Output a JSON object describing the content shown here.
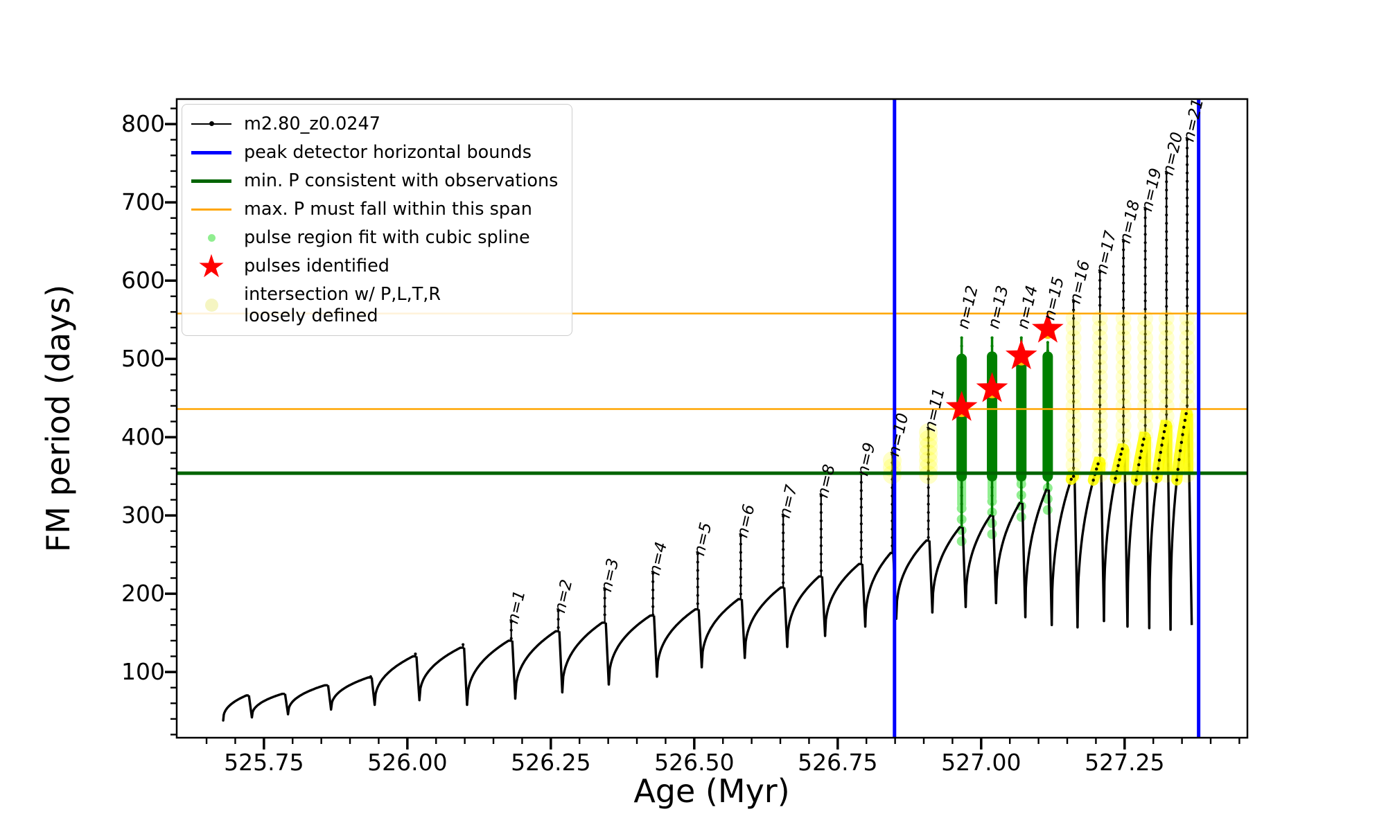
{
  "colors": {
    "curve": "#000000",
    "bounds": "#0000ff",
    "min_p_line": "#006400",
    "max_p_span": "#ffa500",
    "spline_fit": "#90ee90",
    "spline_column": "#008000",
    "pulse_star": "#ff0000",
    "star_center": "#ffbf00",
    "intersection": "#ffff00",
    "intersection_pale": "#f5f5c2"
  },
  "legend": {
    "items": [
      {
        "marker": "line-dot",
        "color": "#000000",
        "label": "m2.80_z0.0247"
      },
      {
        "marker": "thick-line",
        "color": "#0000ff",
        "label": "peak detector horizontal bounds"
      },
      {
        "marker": "thick-line",
        "color": "#006400",
        "label": "min. P consistent with observations"
      },
      {
        "marker": "line",
        "color": "#ffa500",
        "label": "max. P must fall within this span"
      },
      {
        "marker": "dot",
        "color": "#90ee90",
        "size": 11,
        "label": "pulse region fit with cubic spline"
      },
      {
        "marker": "star",
        "color": "#ff0000",
        "label": "pulses identified"
      },
      {
        "marker": "dot",
        "color": "#f5f5c2",
        "size": 19,
        "label": "intersection w/ P,L,T,R\nloosely defined"
      }
    ]
  },
  "chart_data": {
    "type": "line",
    "title": "",
    "xlabel": "Age (Myr)",
    "ylabel": "FM period (days)",
    "series_label": "m2.80_z0.0247",
    "xlim": [
      525.598,
      527.464
    ],
    "ylim": [
      16,
      832
    ],
    "x_major": [
      525.75,
      526.0,
      526.25,
      526.5,
      526.75,
      527.0,
      527.25
    ],
    "x_tick_labels": [
      "525.75",
      "526.00",
      "526.25",
      "526.50",
      "526.75",
      "527.00",
      "527.25"
    ],
    "x_minor_step": 0.05,
    "y_major": [
      100,
      200,
      300,
      400,
      500,
      600,
      700,
      800
    ],
    "y_tick_labels": [
      "100",
      "200",
      "300",
      "400",
      "500",
      "600",
      "700",
      "800"
    ],
    "y_minor_step": 20,
    "grid": false,
    "legend_position": "upper left",
    "bounds_x": [
      526.849,
      527.379
    ],
    "min_P": 354,
    "max_P_span": [
      436,
      558
    ],
    "teeth_start_age": 525.679,
    "teeth_start_P": 38,
    "end_P": 160,
    "teeth": [
      {
        "n": "",
        "a": 525.722,
        "p0": 38,
        "sh": 70,
        "sp": 70
      },
      {
        "n": "",
        "a": 525.785,
        "p0": 42,
        "sh": 72,
        "sp": 72
      },
      {
        "n": "",
        "a": 525.86,
        "p0": 46,
        "sh": 83,
        "sp": 83
      },
      {
        "n": "",
        "a": 525.936,
        "p0": 52,
        "sh": 93,
        "sp": 94
      },
      {
        "n": "",
        "a": 526.014,
        "p0": 58,
        "sh": 120,
        "sp": 123
      },
      {
        "n": "",
        "a": 526.097,
        "p0": 64,
        "sh": 131,
        "sp": 135
      },
      {
        "n": "n=1",
        "a": 526.181,
        "p0": 58,
        "sh": 140,
        "sp": 164
      },
      {
        "n": "n=2",
        "a": 526.263,
        "p0": 66,
        "sh": 152,
        "sp": 178
      },
      {
        "n": "n=3",
        "a": 526.344,
        "p0": 74,
        "sh": 163,
        "sp": 205
      },
      {
        "n": "n=4",
        "a": 526.428,
        "p0": 84,
        "sh": 172,
        "sp": 226
      },
      {
        "n": "n=5",
        "a": 526.506,
        "p0": 94,
        "sh": 180,
        "sp": 251
      },
      {
        "n": "n=6",
        "a": 526.581,
        "p0": 106,
        "sh": 193,
        "sp": 274
      },
      {
        "n": "n=7",
        "a": 526.655,
        "p0": 118,
        "sh": 208,
        "sp": 299
      },
      {
        "n": "n=8",
        "a": 526.721,
        "p0": 132,
        "sh": 222,
        "sp": 325
      },
      {
        "n": "n=9",
        "a": 526.791,
        "p0": 146,
        "sh": 238,
        "sp": 353
      },
      {
        "n": "n=10",
        "a": 526.845,
        "p0": 158,
        "sh": 252,
        "sp": 378,
        "ycol": 378
      },
      {
        "n": "n=11",
        "a": 526.908,
        "p0": 168,
        "sh": 268,
        "sp": 410,
        "ycol": 410
      },
      {
        "n": "n=12",
        "a": 526.966,
        "p0": 176,
        "sh": 285,
        "sp": 527,
        "star": 438,
        "gcol": 500,
        "lg": 259
      },
      {
        "n": "n=13",
        "a": 527.019,
        "p0": 183,
        "sh": 300,
        "sp": 527,
        "star": 462,
        "gcol": 503,
        "lg": 268
      },
      {
        "n": "n=14",
        "a": 527.07,
        "p0": 188,
        "sh": 316,
        "sp": 527,
        "star": 504,
        "gcol": 500,
        "lg": 290
      },
      {
        "n": "n=15",
        "a": 527.116,
        "p0": 170,
        "sh": 333,
        "sp": 521,
        "star": 538,
        "gcol": 503,
        "lg": 299
      },
      {
        "n": "n=16",
        "a": 527.161,
        "p0": 160,
        "sh": 350,
        "sp": 573,
        "ycol": 556
      },
      {
        "n": "n=17",
        "a": 527.207,
        "p0": 157,
        "sh": 368,
        "sp": 611,
        "ycol": 556
      },
      {
        "n": "n=18",
        "a": 527.248,
        "p0": 165,
        "sh": 385,
        "sp": 650,
        "ycol": 556
      },
      {
        "n": "n=19",
        "a": 527.286,
        "p0": 158,
        "sh": 400,
        "sp": 691,
        "ycol": 556
      },
      {
        "n": "n=20",
        "a": 527.323,
        "p0": 156,
        "sh": 415,
        "sp": 737,
        "ycol": 556
      },
      {
        "n": "n=21",
        "a": 527.359,
        "p0": 154,
        "sh": 430,
        "sp": 780,
        "ycol": 556
      }
    ],
    "stars": [
      {
        "age": 526.966,
        "P": 438
      },
      {
        "age": 527.019,
        "P": 462
      },
      {
        "age": 527.07,
        "P": 504
      },
      {
        "age": 527.116,
        "P": 538
      }
    ]
  }
}
